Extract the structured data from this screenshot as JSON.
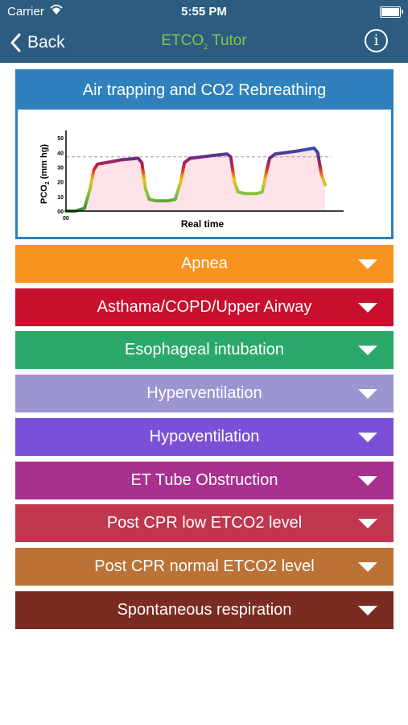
{
  "status_bar": {
    "carrier": "Carrier",
    "time": "5:55 PM"
  },
  "nav": {
    "back_label": "Back",
    "title_main": "ETCO",
    "title_sub": "2",
    "title_rest": " Tutor",
    "info_label": "i",
    "title_color": "#8cc04a",
    "bar_color": "#2c5d80"
  },
  "card": {
    "title": "Air trapping and CO2 Rebreathing",
    "header_color": "#2f80bd"
  },
  "chart_data": {
    "type": "area",
    "ylabel_main": "PCO",
    "ylabel_sub": "2",
    "ylabel_rest": " (mm hg)",
    "xlabel": "Real time",
    "y_ticks": [
      "50",
      "40",
      "30",
      "20",
      "10",
      "00"
    ],
    "y_tick_values": [
      50,
      40,
      30,
      20,
      10,
      0
    ],
    "x_tick_labels": [
      "00"
    ],
    "ylim": [
      0,
      55
    ],
    "reference_line": 37,
    "series": [
      {
        "values": [
          [
            0,
            0
          ],
          [
            5,
            0
          ],
          [
            10,
            2
          ],
          [
            13,
            15
          ],
          [
            15,
            28
          ],
          [
            17,
            32
          ],
          [
            30,
            35
          ],
          [
            39,
            36
          ],
          [
            41,
            33
          ],
          [
            43,
            15
          ],
          [
            45,
            8
          ],
          [
            49,
            7
          ],
          [
            55,
            7
          ],
          [
            59,
            8
          ],
          [
            62,
            20
          ],
          [
            64,
            33
          ],
          [
            67,
            36
          ],
          [
            80,
            38
          ],
          [
            87,
            39
          ],
          [
            89,
            37
          ],
          [
            91,
            20
          ],
          [
            93,
            13
          ],
          [
            97,
            12
          ],
          [
            103,
            12
          ],
          [
            106,
            13
          ],
          [
            108,
            25
          ],
          [
            110,
            36
          ],
          [
            113,
            39
          ],
          [
            125,
            41
          ],
          [
            134,
            43
          ],
          [
            136,
            40
          ],
          [
            138,
            25
          ],
          [
            140,
            18
          ]
        ]
      }
    ]
  },
  "items": [
    {
      "label": "Apnea",
      "color": "#f7931e"
    },
    {
      "label": "Asthama/COPD/Upper Airway",
      "color": "#c8102e"
    },
    {
      "label": "Esophageal intubation",
      "color": "#2aa86a"
    },
    {
      "label": "Hyperventilation",
      "color": "#9b95d0"
    },
    {
      "label": "Hypoventilation",
      "color": "#7b50d8"
    },
    {
      "label": "ET Tube Obstruction",
      "color": "#a9308e"
    },
    {
      "label": "Post CPR low ETCO2 level",
      "color": "#c0364f"
    },
    {
      "label": "Post CPR normal ETCO2 level",
      "color": "#bc7236"
    },
    {
      "label": "Spontaneous respiration",
      "color": "#7b2c22"
    }
  ]
}
